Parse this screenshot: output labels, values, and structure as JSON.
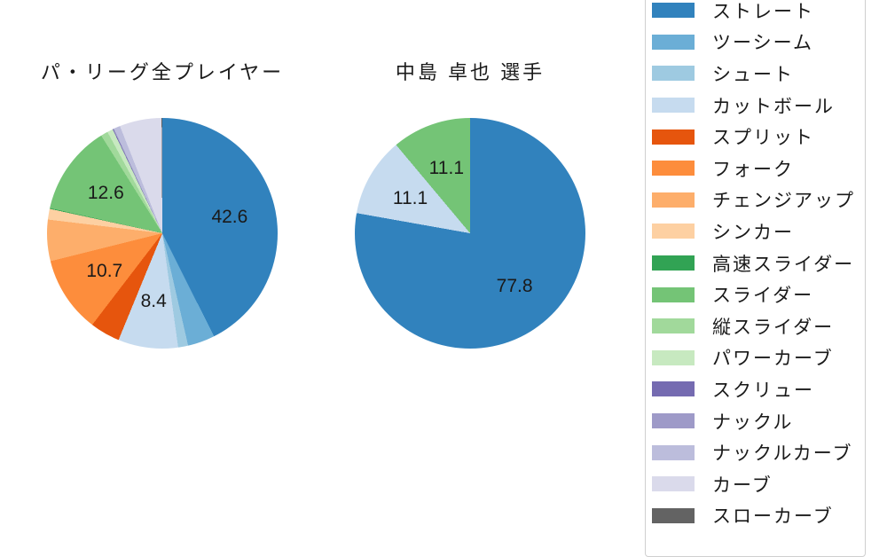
{
  "figure": {
    "background": "#ffffff",
    "text_color": "#1a1a1a",
    "legend_border_color": "#cfcfcf"
  },
  "chart_data": [
    {
      "type": "pie",
      "title": "パ・リーグ全プレイヤー",
      "start_angle": "top",
      "direction": "clockwise",
      "label_radius_fraction": 0.6,
      "slices": [
        {
          "name": "ストレート",
          "value": 42.6,
          "label": "42.6",
          "color": "#3182bd"
        },
        {
          "name": "ツーシーム",
          "value": 3.8,
          "label": null,
          "color": "#6baed6"
        },
        {
          "name": "シュート",
          "value": 1.4,
          "label": null,
          "color": "#9ecae1"
        },
        {
          "name": "カットボール",
          "value": 8.4,
          "label": "8.4",
          "color": "#c6dbef"
        },
        {
          "name": "スプリット",
          "value": 4.2,
          "label": null,
          "color": "#e6550d"
        },
        {
          "name": "フォーク",
          "value": 10.7,
          "label": "10.7",
          "color": "#fd8d3c"
        },
        {
          "name": "チェンジアップ",
          "value": 5.8,
          "label": null,
          "color": "#fdae6b"
        },
        {
          "name": "シンカー",
          "value": 1.5,
          "label": null,
          "color": "#fdd0a2"
        },
        {
          "name": "高速スライダー",
          "value": 0.1,
          "label": null,
          "color": "#31a354"
        },
        {
          "name": "スライダー",
          "value": 12.6,
          "label": "12.6",
          "color": "#74c476"
        },
        {
          "name": "縦スライダー",
          "value": 1.0,
          "label": null,
          "color": "#a1d99b"
        },
        {
          "name": "パワーカーブ",
          "value": 0.8,
          "label": null,
          "color": "#c7e9c0"
        },
        {
          "name": "スクリュー",
          "value": 0.1,
          "label": null,
          "color": "#756bb1"
        },
        {
          "name": "ナックル",
          "value": 0.1,
          "label": null,
          "color": "#9e9ac8"
        },
        {
          "name": "ナックルカーブ",
          "value": 0.9,
          "label": null,
          "color": "#bcbddc"
        },
        {
          "name": "カーブ",
          "value": 5.9,
          "label": null,
          "color": "#dadaeb"
        },
        {
          "name": "スローカーブ",
          "value": 0.1,
          "label": null,
          "color": "#636363"
        }
      ]
    },
    {
      "type": "pie",
      "title": "中島 卓也 選手",
      "start_angle": "top",
      "direction": "clockwise",
      "label_radius_fraction": 0.6,
      "slices": [
        {
          "name": "ストレート",
          "value": 77.8,
          "label": "77.8",
          "color": "#3182bd"
        },
        {
          "name": "カットボール",
          "value": 11.1,
          "label": "11.1",
          "color": "#c6dbef"
        },
        {
          "name": "スライダー",
          "value": 11.1,
          "label": "11.1",
          "color": "#74c476"
        }
      ]
    }
  ],
  "legend": {
    "items": [
      {
        "label": "ストレート",
        "color": "#3182bd"
      },
      {
        "label": "ツーシーム",
        "color": "#6baed6"
      },
      {
        "label": "シュート",
        "color": "#9ecae1"
      },
      {
        "label": "カットボール",
        "color": "#c6dbef"
      },
      {
        "label": "スプリット",
        "color": "#e6550d"
      },
      {
        "label": "フォーク",
        "color": "#fd8d3c"
      },
      {
        "label": "チェンジアップ",
        "color": "#fdae6b"
      },
      {
        "label": "シンカー",
        "color": "#fdd0a2"
      },
      {
        "label": "高速スライダー",
        "color": "#31a354"
      },
      {
        "label": "スライダー",
        "color": "#74c476"
      },
      {
        "label": "縦スライダー",
        "color": "#a1d99b"
      },
      {
        "label": "パワーカーブ",
        "color": "#c7e9c0"
      },
      {
        "label": "スクリュー",
        "color": "#756bb1"
      },
      {
        "label": "ナックル",
        "color": "#9e9ac8"
      },
      {
        "label": "ナックルカーブ",
        "color": "#bcbddc"
      },
      {
        "label": "カーブ",
        "color": "#dadaeb"
      },
      {
        "label": "スローカーブ",
        "color": "#636363"
      }
    ]
  }
}
